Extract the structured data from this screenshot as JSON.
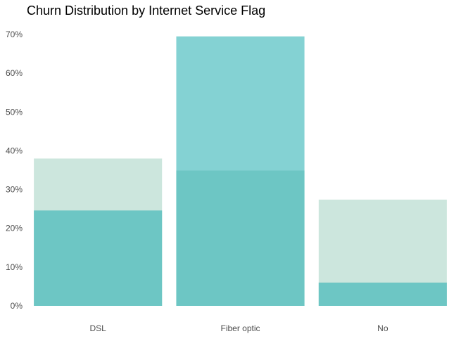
{
  "chart_data": {
    "type": "bar",
    "title": "Churn Distribution by Internet Service Flag",
    "xlabel": "",
    "ylabel": "",
    "categories": [
      "DSL",
      "Fiber optic",
      "No"
    ],
    "series": [
      {
        "values": [
          38.0,
          69.5,
          27.4
        ],
        "color": "#cce6dd"
      },
      {
        "values": [
          24.6,
          34.9,
          6.0
        ],
        "color": "#6dc6c4"
      }
    ],
    "highlight": {
      "category": "Fiber optic",
      "color": "#84d2d3"
    },
    "ylim": [
      0,
      70
    ],
    "yticks": [
      0,
      10,
      20,
      30,
      40,
      50,
      60,
      70
    ],
    "ytick_labels": [
      "0%",
      "10%",
      "20%",
      "30%",
      "40%",
      "50%",
      "60%",
      "70%"
    ],
    "grid": false,
    "legend": "none"
  }
}
